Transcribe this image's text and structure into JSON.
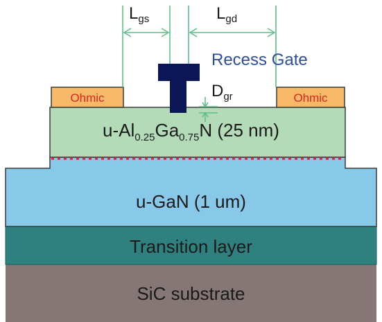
{
  "layers": {
    "substrate": {
      "label": "SiC substrate",
      "color": "#847775"
    },
    "transition": {
      "label": "Transition layer",
      "color": "#2e817f"
    },
    "gan": {
      "label": "u-GaN (1 um)",
      "color": "#88c9ea"
    },
    "barrier": {
      "prefix": "u-Al",
      "al_sub": "0.25",
      "ga": "Ga",
      "ga_sub": "0.75",
      "suffix": "N (25 nm)",
      "color": "#b4dbb8"
    }
  },
  "contacts": {
    "left": {
      "label": "Ohmic"
    },
    "right": {
      "label": "Ohmic"
    },
    "color": "#f6b96a"
  },
  "gate": {
    "label": "Recess Gate",
    "color": "#0b1656"
  },
  "dimensions": {
    "lgs": {
      "main": "L",
      "sub": "gs"
    },
    "lgd": {
      "main": "L",
      "sub": "gd"
    },
    "dgr": {
      "main": "D",
      "sub": "gr"
    }
  },
  "colors": {
    "dimension_line": "#5cc08a",
    "channel_2deg": "#d8283c"
  }
}
